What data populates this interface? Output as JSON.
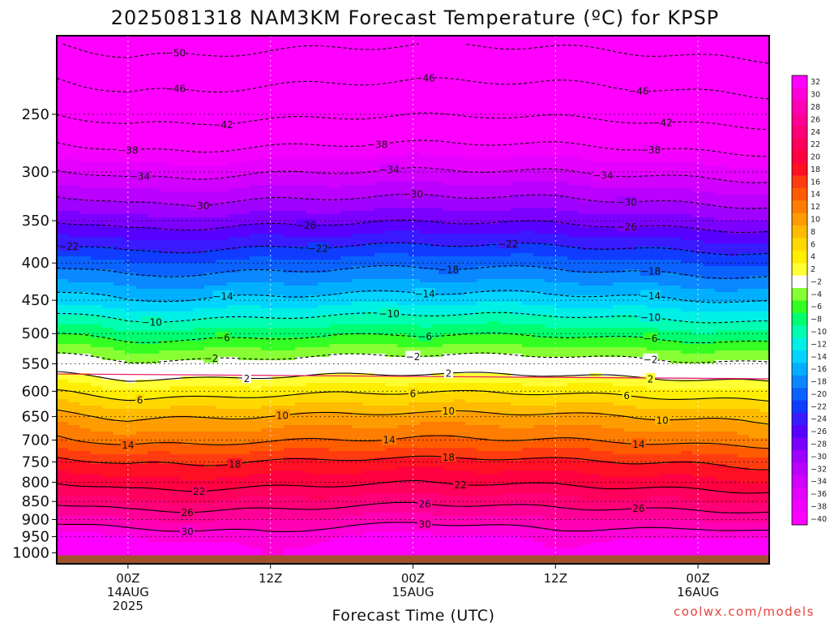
{
  "chart_data": {
    "type": "contour",
    "title": "2025081318 NAM3KM Forecast Temperature (ºC) for KPSP",
    "xlabel": "Forecast Time (UTC)",
    "credit": "coolwx.com/models",
    "y_axis": {
      "quantity": "pressure (hPa)",
      "scale": "log",
      "reversed": true,
      "range": [
        1035,
        195
      ],
      "ticks": [
        "250",
        "300",
        "350",
        "400",
        "450",
        "500",
        "550",
        "600",
        "650",
        "700",
        "750",
        "800",
        "850",
        "900",
        "950",
        "1000"
      ],
      "tick_values": [
        250,
        300,
        350,
        400,
        450,
        500,
        550,
        600,
        650,
        700,
        750,
        800,
        850,
        900,
        950,
        1000
      ],
      "dotted_grid_levels": [
        250,
        300,
        350,
        400,
        450,
        500,
        550,
        600,
        650,
        700,
        750,
        800,
        850,
        900,
        950
      ]
    },
    "x_axis": {
      "quantity": "forecast hour from 2025-08-13 18Z",
      "range": [
        0,
        60
      ],
      "ticks": [
        {
          "hour": 6,
          "lines": [
            "00Z",
            "14AUG",
            "2025"
          ]
        },
        {
          "hour": 18,
          "lines": [
            "12Z"
          ]
        },
        {
          "hour": 30,
          "lines": [
            "00Z",
            "15AUG"
          ]
        },
        {
          "hour": 42,
          "lines": [
            "12Z"
          ]
        },
        {
          "hour": 54,
          "lines": [
            "00Z",
            "16AUG"
          ]
        }
      ],
      "vertical_grid": true
    },
    "colorbar": {
      "levels": [
        -40,
        -38,
        -36,
        -34,
        -32,
        -30,
        -28,
        -26,
        -24,
        -22,
        -20,
        -18,
        -16,
        -14,
        -12,
        -10,
        -8,
        -6,
        -4,
        -2,
        2,
        4,
        6,
        8,
        10,
        12,
        14,
        16,
        18,
        20,
        22,
        24,
        26,
        28,
        30,
        32
      ],
      "labels": [
        "−40",
        "−38",
        "−36",
        "−34",
        "−32",
        "−30",
        "−28",
        "−26",
        "−24",
        "−22",
        "−20",
        "−18",
        "−16",
        "−14",
        "−12",
        "−10",
        "−8",
        "−6",
        "−4",
        "−2",
        "2",
        "4",
        "6",
        "8",
        "10",
        "12",
        "14",
        "16",
        "18",
        "20",
        "22",
        "24",
        "26",
        "28",
        "30",
        "32"
      ],
      "colors": [
        "#ff00ff",
        "#f400ff",
        "#e500ff",
        "#d200ff",
        "#bb00ff",
        "#a000ff",
        "#7c00ff",
        "#5800ff",
        "#3a1aff",
        "#0f3cff",
        "#0a62ff",
        "#0a88ff",
        "#00b0ff",
        "#00d4ff",
        "#00f0e6",
        "#00ffb0",
        "#00ff70",
        "#33ff22",
        "#88ff33",
        "#ffffff",
        "#ffff33",
        "#ffee00",
        "#ffd800",
        "#ffbb00",
        "#ff9c00",
        "#ff7d00",
        "#ff5c00",
        "#ff3c10",
        "#ff1024",
        "#ff0040",
        "#ff005c",
        "#ff0078",
        "#ff0096",
        "#ff00b4",
        "#ff00d8",
        "#ff00ff"
      ]
    },
    "ground": {
      "below_pressure": 1000,
      "color": "#a0522d"
    },
    "freezing_line": {
      "pressure": 568,
      "color": "#e8206a"
    },
    "profile": {
      "hours": [
        0,
        6,
        12,
        18,
        24,
        30,
        36,
        42,
        48,
        54,
        60
      ],
      "pressures": [
        1000,
        950,
        900,
        850,
        800,
        750,
        700,
        650,
        600,
        550,
        500,
        450,
        400,
        350,
        300,
        250,
        200
      ],
      "temperature_at_hour6": [
        33.5,
        31.5,
        28.0,
        24.5,
        21.0,
        18.0,
        13.5,
        10.0,
        5.0,
        -1.0,
        -7.0,
        -13.5,
        -19.5,
        -27.0,
        -34.5,
        -43.0,
        -51.0
      ],
      "diurnal_shift_at_hour": [
        1.0,
        -0.5,
        -0.3,
        0.2,
        0.6,
        0.8,
        0.8,
        0.6,
        0.1,
        -0.5,
        -0.9
      ],
      "surface_amplitude_at_hour": [
        0.4,
        1.0,
        0.0,
        -0.7,
        -0.2,
        1.0,
        0.0,
        -0.7,
        -0.2,
        1.0,
        0.5
      ]
    },
    "contours": {
      "interval": 4,
      "solid_levels": [
        2,
        6,
        10,
        14,
        18,
        22,
        26,
        30
      ],
      "dashed_levels": [
        -2,
        -6,
        -10,
        -14,
        -18,
        -22,
        -26,
        -30,
        -34,
        -38,
        -42,
        -46,
        -50
      ],
      "labels": [
        {
          "text": "2",
          "hour": 16,
          "level": 2
        },
        {
          "text": "2",
          "hour": 33,
          "level": 2
        },
        {
          "text": "2",
          "hour": 50,
          "level": 2
        },
        {
          "text": "6",
          "hour": 7,
          "level": 6
        },
        {
          "text": "6",
          "hour": 30,
          "level": 6
        },
        {
          "text": "6",
          "hour": 48,
          "level": 6
        },
        {
          "text": "10",
          "hour": 19,
          "level": 10
        },
        {
          "text": "10",
          "hour": 33,
          "level": 10
        },
        {
          "text": "10",
          "hour": 51,
          "level": 10
        },
        {
          "text": "14",
          "hour": 6,
          "level": 14
        },
        {
          "text": "14",
          "hour": 28,
          "level": 14
        },
        {
          "text": "14",
          "hour": 49,
          "level": 14
        },
        {
          "text": "18",
          "hour": 15,
          "level": 18
        },
        {
          "text": "18",
          "hour": 33,
          "level": 18
        },
        {
          "text": "22",
          "hour": 12,
          "level": 22
        },
        {
          "text": "22",
          "hour": 34,
          "level": 22
        },
        {
          "text": "26",
          "hour": 11,
          "level": 26
        },
        {
          "text": "26",
          "hour": 31,
          "level": 26
        },
        {
          "text": "26",
          "hour": 49,
          "level": 26
        },
        {
          "text": "30",
          "hour": 11,
          "level": 30
        },
        {
          "text": "30",
          "hour": 31,
          "level": 30
        },
        {
          "text": "−2",
          "hour": 13,
          "level": -2
        },
        {
          "text": "−2",
          "hour": 30,
          "level": -2
        },
        {
          "text": "−2",
          "hour": 50,
          "level": -2
        },
        {
          "text": "−6",
          "hour": 14,
          "level": -6
        },
        {
          "text": "−6",
          "hour": 31,
          "level": -6
        },
        {
          "text": "−6",
          "hour": 50,
          "level": -6
        },
        {
          "text": "−10",
          "hour": 8,
          "level": -10
        },
        {
          "text": "−10",
          "hour": 28,
          "level": -10
        },
        {
          "text": "−10",
          "hour": 50,
          "level": -10
        },
        {
          "text": "−14",
          "hour": 14,
          "level": -14
        },
        {
          "text": "−14",
          "hour": 31,
          "level": -14
        },
        {
          "text": "−14",
          "hour": 50,
          "level": -14
        },
        {
          "text": "−18",
          "hour": 33,
          "level": -18
        },
        {
          "text": "−18",
          "hour": 50,
          "level": -18
        },
        {
          "text": "−22",
          "hour": 1,
          "level": -22
        },
        {
          "text": "−22",
          "hour": 22,
          "level": -22
        },
        {
          "text": "−22",
          "hour": 38,
          "level": -22
        },
        {
          "text": "−26",
          "hour": 21,
          "level": -26
        },
        {
          "text": "−26",
          "hour": 48,
          "level": -26
        },
        {
          "text": "−30",
          "hour": 12,
          "level": -30
        },
        {
          "text": "−30",
          "hour": 30,
          "level": -30
        },
        {
          "text": "−30",
          "hour": 48,
          "level": -30
        },
        {
          "text": "−34",
          "hour": 7,
          "level": -34
        },
        {
          "text": "−34",
          "hour": 28,
          "level": -34
        },
        {
          "text": "−34",
          "hour": 46,
          "level": -34
        },
        {
          "text": "−38",
          "hour": 6,
          "level": -38
        },
        {
          "text": "−38",
          "hour": 27,
          "level": -38
        },
        {
          "text": "−38",
          "hour": 50,
          "level": -38
        },
        {
          "text": "−42",
          "hour": 14,
          "level": -42
        },
        {
          "text": "−42",
          "hour": 51,
          "level": -42
        },
        {
          "text": "−46",
          "hour": 10,
          "level": -46
        },
        {
          "text": "−46",
          "hour": 31,
          "level": -46
        },
        {
          "text": "−46",
          "hour": 49,
          "level": -46
        },
        {
          "text": "−50",
          "hour": 10,
          "level": -50
        }
      ]
    }
  }
}
